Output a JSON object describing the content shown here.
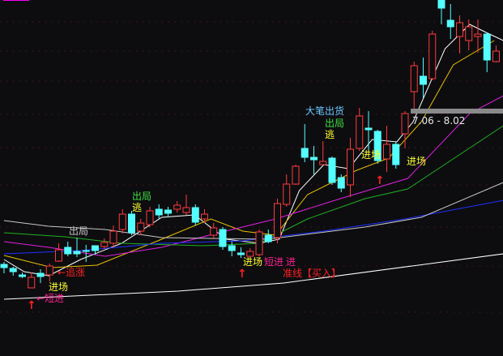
{
  "chart_data": {
    "type": "candlestick",
    "grid": "horizontal dotted",
    "colors": {
      "background": "#0d0d10",
      "up": "#ff3b3b",
      "down": "#54ffff",
      "grid": "#6a1a1a"
    },
    "candles": [
      [
        113,
        116,
        102,
        109
      ],
      [
        108,
        110,
        99,
        104
      ],
      [
        100,
        103,
        96,
        98
      ],
      [
        84,
        103,
        84,
        97
      ],
      [
        102,
        107,
        90,
        98
      ],
      [
        100,
        114,
        92,
        111
      ],
      [
        117,
        139,
        116,
        131
      ],
      [
        134,
        141,
        123,
        126
      ],
      [
        129,
        146,
        122,
        126
      ],
      [
        130,
        137,
        116,
        129
      ],
      [
        136,
        136,
        125,
        130
      ],
      [
        135,
        145,
        132,
        140
      ],
      [
        139,
        161,
        134,
        154
      ],
      [
        156,
        181,
        151,
        175
      ],
      [
        175,
        179,
        149,
        152
      ],
      [
        154,
        169,
        149,
        164
      ],
      [
        162,
        184,
        159,
        179
      ],
      [
        181,
        187,
        169,
        174
      ],
      [
        180,
        184,
        171,
        176
      ],
      [
        181,
        191,
        177,
        186
      ],
      [
        177,
        199,
        174,
        183
      ],
      [
        183,
        187,
        161,
        165
      ],
      [
        169,
        181,
        164,
        175
      ],
      [
        149,
        164,
        144,
        158
      ],
      [
        156,
        159,
        131,
        135
      ],
      [
        136,
        141,
        123,
        130
      ],
      [
        127,
        134,
        121,
        125
      ],
      [
        123,
        133,
        121,
        129
      ],
      [
        125,
        156,
        123,
        153
      ],
      [
        149,
        156,
        139,
        141
      ],
      [
        146,
        194,
        139,
        188
      ],
      [
        187,
        224,
        184,
        212
      ],
      [
        212,
        236,
        211,
        234
      ],
      [
        256,
        286,
        239,
        245
      ],
      [
        245,
        259,
        224,
        242
      ],
      [
        236,
        265,
        236,
        240
      ],
      [
        244,
        246,
        211,
        214
      ],
      [
        220,
        224,
        202,
        207
      ],
      [
        211,
        269,
        196,
        255
      ],
      [
        256,
        306,
        253,
        296
      ],
      [
        281,
        302,
        252,
        279
      ],
      [
        277,
        279,
        237,
        241
      ],
      [
        243,
        284,
        227,
        261
      ],
      [
        261,
        264,
        231,
        236
      ],
      [
        274,
        302,
        256,
        299
      ],
      [
        326,
        363,
        304,
        358
      ],
      [
        345,
        368,
        318,
        335
      ],
      [
        342,
        401,
        340,
        397
      ],
      [
        439,
        439,
        409,
        429
      ],
      [
        414,
        434,
        391,
        406
      ],
      [
        394,
        420,
        373,
        411
      ],
      [
        389,
        415,
        377,
        406
      ],
      [
        394,
        415,
        374,
        397
      ],
      [
        397,
        399,
        350,
        365
      ],
      [
        363,
        383,
        362,
        376
      ]
    ],
    "candle_fields": [
      "open",
      "high",
      "low",
      "close"
    ],
    "lines": [
      {
        "color": "#ffffff",
        "points": [
          [
            0,
            119
          ],
          [
            2.2,
            104
          ],
          [
            4.9,
            99
          ],
          [
            8.4,
            119
          ],
          [
            12.9,
            139
          ],
          [
            17.3,
            171
          ],
          [
            20.9,
            174
          ],
          [
            24.4,
            144
          ],
          [
            28,
            139
          ],
          [
            30.2,
            144
          ],
          [
            32.4,
            204
          ],
          [
            35.1,
            236
          ],
          [
            37.8,
            231
          ],
          [
            40.4,
            267
          ],
          [
            43.1,
            264
          ],
          [
            44.9,
            289
          ],
          [
            48.4,
            379
          ],
          [
            51.1,
            409
          ],
          [
            52.9,
            399
          ],
          [
            54.8,
            389
          ]
        ]
      },
      {
        "color": "#e8c000",
        "points": [
          [
            0,
            124
          ],
          [
            5.3,
            109
          ],
          [
            10.2,
            112
          ],
          [
            17.3,
            144
          ],
          [
            22.7,
            169
          ],
          [
            26.2,
            154
          ],
          [
            29.8,
            149
          ],
          [
            33.3,
            199
          ],
          [
            38.7,
            229
          ],
          [
            42.2,
            244
          ],
          [
            45.8,
            289
          ],
          [
            49.3,
            359
          ],
          [
            53.8,
            389
          ]
        ]
      },
      {
        "color": "#e020e0",
        "points": [
          [
            0,
            141
          ],
          [
            4.9,
            134
          ],
          [
            11.1,
            123
          ],
          [
            17.3,
            134
          ],
          [
            23.6,
            152
          ],
          [
            29.8,
            169
          ],
          [
            36.9,
            194
          ],
          [
            44.3,
            219
          ],
          [
            51.1,
            299
          ],
          [
            54.8,
            321
          ]
        ]
      },
      {
        "color": "#20b020",
        "points": [
          [
            0,
            152
          ],
          [
            6.7,
            147
          ],
          [
            12.9,
            139
          ],
          [
            21.8,
            136
          ],
          [
            28,
            139
          ],
          [
            33.3,
            169
          ],
          [
            39.6,
            194
          ],
          [
            44.3,
            206
          ],
          [
            54.8,
            284
          ]
        ]
      },
      {
        "color": "#2030ff",
        "points": [
          [
            0,
            126
          ],
          [
            8.4,
            130
          ],
          [
            17.3,
            139
          ],
          [
            26.2,
            142
          ],
          [
            35.1,
            154
          ],
          [
            44,
            169
          ],
          [
            54.8,
            192
          ]
        ]
      },
      {
        "color": "#c8c8c8",
        "points": [
          [
            0,
            167
          ],
          [
            4.9,
            160
          ],
          [
            11.1,
            156
          ],
          [
            17.3,
            146
          ],
          [
            28.9,
            144
          ],
          [
            39.6,
            159
          ],
          [
            45.8,
            171
          ],
          [
            54.8,
            214
          ]
        ]
      },
      {
        "color": "#ffffff",
        "points": [
          [
            0,
            70
          ],
          [
            19.1,
            80
          ],
          [
            30.7,
            90
          ],
          [
            54.8,
            126
          ]
        ]
      }
    ],
    "annotations": {
      "exit_1": "出局",
      "escape_1": "逃",
      "exit_2": "出局",
      "big_sell": "大笔出货",
      "exit_3": "出局",
      "escape_2": "逃",
      "enter_1": "进场",
      "enter_2": "进场",
      "enter_3": "进场",
      "enter_4": "进场",
      "chase": "←追涨",
      "short_entry": "←短进",
      "short_entry_2": "短进",
      "buy_line": "准线【买入】",
      "buy_prefix": "进"
    },
    "range_label": "7.06 - 8.02"
  }
}
